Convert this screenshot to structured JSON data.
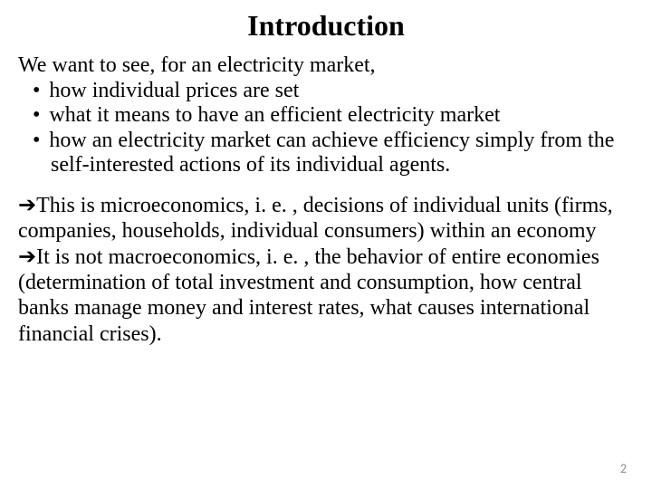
{
  "title": "Introduction",
  "intro": "We want to see, for an electricity market,",
  "bullets": [
    "how individual prices are set",
    "what it means to have an efficient electricity market",
    "how an electricity market can achieve efficiency simply from the self-interested actions of its individual agents."
  ],
  "arrow_paras": [
    "This is microeconomics, i. e. , decisions of individual units (firms, companies, households, individual consumers) within an economy",
    "It is not macroeconomics, i. e. , the behavior of entire economies (determination of total investment and consumption, how central banks manage money and interest rates, what causes international financial crises)."
  ],
  "page_number": "2",
  "colors": {
    "text": "#000000",
    "background": "#ffffff",
    "page_number": "#8c8c8c"
  },
  "typography": {
    "title_fontsize": 32,
    "body_fontsize": 24,
    "page_number_fontsize": 14,
    "font_family": "Times New Roman"
  }
}
